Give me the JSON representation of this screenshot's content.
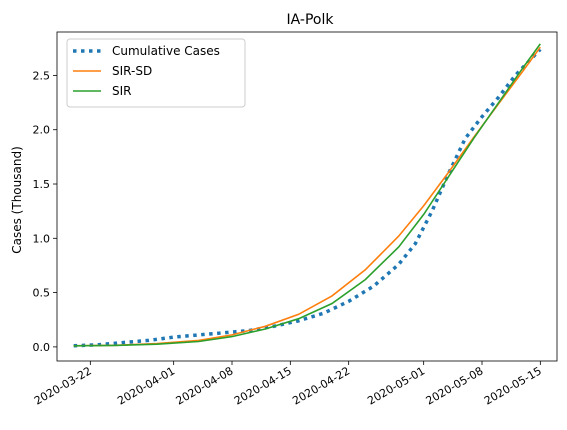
{
  "chart_data": {
    "type": "line",
    "title": "IA-Polk",
    "xlabel": "",
    "ylabel": "Cases (Thousand)",
    "xlim": [
      "2020-03-18",
      "2020-05-17"
    ],
    "ylim": [
      -0.13,
      2.9
    ],
    "x_ticks": [
      "2020-03-22",
      "2020-04-01",
      "2020-04-08",
      "2020-04-15",
      "2020-04-22",
      "2020-05-01",
      "2020-05-08",
      "2020-05-15"
    ],
    "y_ticks": [
      0.0,
      0.5,
      1.0,
      1.5,
      2.0,
      2.5
    ],
    "y_tick_labels": [
      "0.0",
      "0.5",
      "1.0",
      "1.5",
      "2.0",
      "2.5"
    ],
    "grid": false,
    "legend_position": "top-left",
    "series": [
      {
        "name": "Cumulative Cases",
        "style": "dotted",
        "color": "#1f77b4",
        "points": [
          [
            "2020-03-20",
            0.01
          ],
          [
            "2020-03-23",
            0.02
          ],
          [
            "2020-03-26",
            0.04
          ],
          [
            "2020-03-29",
            0.06
          ],
          [
            "2020-04-01",
            0.09
          ],
          [
            "2020-04-04",
            0.11
          ],
          [
            "2020-04-07",
            0.13
          ],
          [
            "2020-04-10",
            0.15
          ],
          [
            "2020-04-13",
            0.19
          ],
          [
            "2020-04-16",
            0.24
          ],
          [
            "2020-04-19",
            0.31
          ],
          [
            "2020-04-22",
            0.42
          ],
          [
            "2020-04-25",
            0.56
          ],
          [
            "2020-04-28",
            0.76
          ],
          [
            "2020-04-30",
            0.95
          ],
          [
            "2020-05-02",
            1.25
          ],
          [
            "2020-05-04",
            1.6
          ],
          [
            "2020-05-06",
            1.92
          ],
          [
            "2020-05-08",
            2.12
          ],
          [
            "2020-05-10",
            2.3
          ],
          [
            "2020-05-12",
            2.5
          ],
          [
            "2020-05-15",
            2.74
          ]
        ]
      },
      {
        "name": "SIR-SD",
        "style": "solid",
        "color": "#ff7f0e",
        "points": [
          [
            "2020-03-20",
            0.01
          ],
          [
            "2020-03-25",
            0.015
          ],
          [
            "2020-03-30",
            0.03
          ],
          [
            "2020-04-04",
            0.06
          ],
          [
            "2020-04-08",
            0.11
          ],
          [
            "2020-04-12",
            0.19
          ],
          [
            "2020-04-16",
            0.3
          ],
          [
            "2020-04-20",
            0.47
          ],
          [
            "2020-04-24",
            0.71
          ],
          [
            "2020-04-28",
            1.02
          ],
          [
            "2020-05-01",
            1.3
          ],
          [
            "2020-05-04",
            1.61
          ],
          [
            "2020-05-07",
            1.93
          ],
          [
            "2020-05-10",
            2.24
          ],
          [
            "2020-05-13",
            2.55
          ],
          [
            "2020-05-15",
            2.76
          ]
        ]
      },
      {
        "name": "SIR",
        "style": "solid",
        "color": "#2ca02c",
        "points": [
          [
            "2020-03-20",
            0.01
          ],
          [
            "2020-03-25",
            0.014
          ],
          [
            "2020-03-30",
            0.025
          ],
          [
            "2020-04-04",
            0.05
          ],
          [
            "2020-04-08",
            0.095
          ],
          [
            "2020-04-12",
            0.165
          ],
          [
            "2020-04-16",
            0.26
          ],
          [
            "2020-04-20",
            0.4
          ],
          [
            "2020-04-24",
            0.62
          ],
          [
            "2020-04-28",
            0.92
          ],
          [
            "2020-05-01",
            1.22
          ],
          [
            "2020-05-04",
            1.57
          ],
          [
            "2020-05-07",
            1.92
          ],
          [
            "2020-05-10",
            2.25
          ],
          [
            "2020-05-13",
            2.58
          ],
          [
            "2020-05-15",
            2.79
          ]
        ]
      }
    ]
  }
}
